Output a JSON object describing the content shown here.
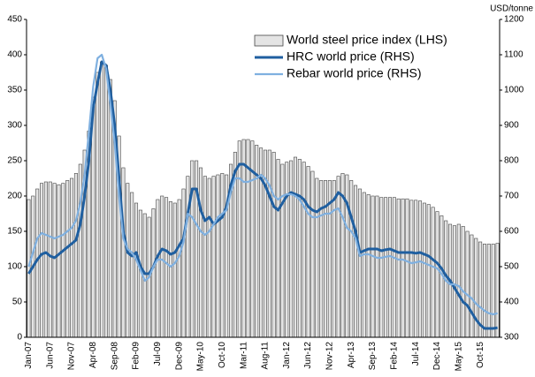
{
  "chart_data": {
    "type": "combo",
    "y2_label": "USD/tonne",
    "categories": [
      "Jan-07",
      null,
      null,
      null,
      null,
      "Jun-07",
      null,
      null,
      null,
      null,
      "Nov-07",
      null,
      null,
      null,
      null,
      "Apr-08",
      null,
      null,
      null,
      null,
      "Sep-08",
      null,
      null,
      null,
      null,
      "Feb-09",
      null,
      null,
      null,
      null,
      "Jul-09",
      null,
      null,
      null,
      null,
      "Dec-09",
      null,
      null,
      null,
      null,
      "May-10",
      null,
      null,
      null,
      null,
      "Oct-10",
      null,
      null,
      null,
      null,
      "Mar-11",
      null,
      null,
      null,
      null,
      "Aug-11",
      null,
      null,
      null,
      null,
      "Jan-12",
      null,
      null,
      null,
      null,
      "Jun-12",
      null,
      null,
      null,
      null,
      "Nov-12",
      null,
      null,
      null,
      null,
      "Apr-13",
      null,
      null,
      null,
      null,
      "Sep-13",
      null,
      null,
      null,
      null,
      "Feb-14",
      null,
      null,
      null,
      null,
      "Jul-14",
      null,
      null,
      null,
      null,
      "Dec-14",
      null,
      null,
      null,
      null,
      "May-15",
      null,
      null,
      null,
      null,
      "Oct-15",
      null,
      null,
      null,
      null
    ],
    "series": [
      {
        "name": "World steel price index (LHS)",
        "type": "bar",
        "color": "#e4e4e4",
        "values": [
          195,
          200,
          210,
          218,
          220,
          220,
          218,
          216,
          218,
          222,
          225,
          232,
          245,
          265,
          292,
          340,
          375,
          390,
          385,
          365,
          335,
          285,
          240,
          218,
          205,
          190,
          180,
          175,
          170,
          182,
          195,
          200,
          198,
          192,
          190,
          195,
          210,
          228,
          250,
          250,
          240,
          228,
          225,
          228,
          230,
          232,
          230,
          245,
          262,
          278,
          280,
          280,
          278,
          272,
          268,
          265,
          265,
          262,
          252,
          245,
          248,
          250,
          255,
          252,
          248,
          242,
          235,
          225,
          222,
          222,
          222,
          222,
          228,
          232,
          230,
          222,
          215,
          210,
          205,
          202,
          200,
          200,
          198,
          198,
          198,
          198,
          196,
          196,
          196,
          194,
          194,
          193,
          190,
          188,
          184,
          178,
          172,
          165,
          160,
          158,
          160,
          157,
          150,
          145,
          140,
          135,
          132,
          132,
          132,
          133
        ]
      },
      {
        "name": "HRC world price (RHS)",
        "type": "line",
        "axis": "y2",
        "color": "#1f5fa0",
        "values": [
          480,
          500,
          520,
          535,
          540,
          530,
          525,
          535,
          545,
          555,
          565,
          575,
          620,
          700,
          800,
          950,
          1020,
          1080,
          1070,
          1000,
          900,
          750,
          600,
          540,
          530,
          540,
          500,
          480,
          480,
          500,
          530,
          550,
          545,
          535,
          540,
          560,
          580,
          650,
          720,
          720,
          660,
          630,
          640,
          620,
          630,
          640,
          670,
          730,
          770,
          790,
          790,
          780,
          770,
          760,
          750,
          730,
          700,
          670,
          660,
          680,
          700,
          710,
          705,
          700,
          690,
          670,
          660,
          655,
          665,
          670,
          680,
          690,
          710,
          700,
          680,
          640,
          600,
          540,
          545,
          550,
          550,
          550,
          545,
          548,
          550,
          545,
          540,
          540,
          540,
          540,
          538,
          540,
          535,
          530,
          520,
          510,
          495,
          475,
          460,
          440,
          420,
          400,
          390,
          370,
          350,
          335,
          325,
          325,
          325,
          327
        ]
      },
      {
        "name": "Rebar world price (RHS)",
        "type": "line",
        "axis": "y2",
        "color": "#7fb0e0",
        "values": [
          500,
          540,
          580,
          595,
          590,
          585,
          580,
          585,
          590,
          600,
          610,
          630,
          680,
          760,
          880,
          1010,
          1090,
          1100,
          1060,
          960,
          850,
          700,
          580,
          550,
          540,
          520,
          490,
          460,
          470,
          500,
          520,
          520,
          510,
          500,
          510,
          530,
          570,
          650,
          640,
          620,
          600,
          590,
          600,
          620,
          640,
          650,
          660,
          710,
          750,
          750,
          740,
          740,
          745,
          750,
          760,
          750,
          730,
          700,
          690,
          700,
          705,
          705,
          700,
          690,
          670,
          650,
          640,
          640,
          645,
          650,
          650,
          660,
          665,
          640,
          610,
          600,
          580,
          530,
          535,
          535,
          530,
          525,
          525,
          528,
          530,
          525,
          520,
          520,
          515,
          510,
          512,
          515,
          510,
          505,
          500,
          495,
          480,
          460,
          450,
          450,
          445,
          430,
          420,
          410,
          395,
          385,
          375,
          368,
          365,
          368
        ]
      }
    ],
    "ylim": [
      0,
      450
    ],
    "yticks": [
      0,
      50,
      100,
      150,
      200,
      250,
      300,
      350,
      400,
      450
    ],
    "y2lim": [
      300,
      1200
    ],
    "y2ticks": [
      300,
      400,
      500,
      600,
      700,
      800,
      900,
      1000,
      1100,
      1200
    ]
  }
}
